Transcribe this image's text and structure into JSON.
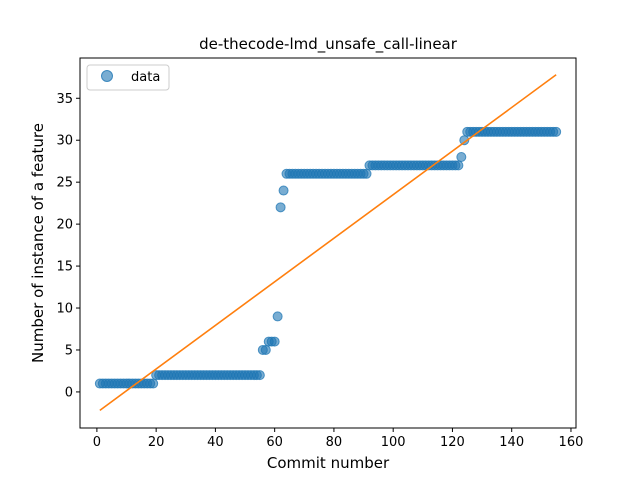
{
  "chart_data": {
    "type": "scatter",
    "title": "de-thecode-lmd_unsafe_call-linear",
    "xlabel": "Commit number",
    "ylabel": "Number of instance of a feature",
    "xlim": [
      -5.7,
      161.7
    ],
    "ylim": [
      -4.3,
      39.8
    ],
    "xticks": [
      0,
      20,
      40,
      60,
      80,
      100,
      120,
      140,
      160
    ],
    "yticks": [
      0,
      5,
      10,
      15,
      20,
      25,
      30,
      35
    ],
    "grid": false,
    "legend": {
      "placement": "top-left",
      "entries": [
        "data"
      ]
    },
    "colors": {
      "data": "#1f77b4",
      "fit": "#ff7f0e"
    },
    "series": [
      {
        "name": "data",
        "style": "markers",
        "segments": [
          {
            "x_from": 1,
            "x_to": 19,
            "y": 1
          },
          {
            "x_from": 20,
            "x_to": 55,
            "y": 2
          },
          {
            "x_from": 64,
            "x_to": 91,
            "y": 26
          },
          {
            "x_from": 92,
            "x_to": 122,
            "y": 27
          },
          {
            "x_from": 125,
            "x_to": 155,
            "y": 31
          }
        ],
        "points": [
          [
            56,
            5
          ],
          [
            57,
            5
          ],
          [
            58,
            6
          ],
          [
            59,
            6
          ],
          [
            60,
            6
          ],
          [
            61,
            9
          ],
          [
            62,
            22
          ],
          [
            63,
            24
          ],
          [
            123,
            28
          ],
          [
            124,
            30
          ]
        ]
      },
      {
        "name": "",
        "style": "line",
        "x": [
          1,
          155
        ],
        "y": [
          -2.2,
          37.8
        ]
      }
    ]
  }
}
